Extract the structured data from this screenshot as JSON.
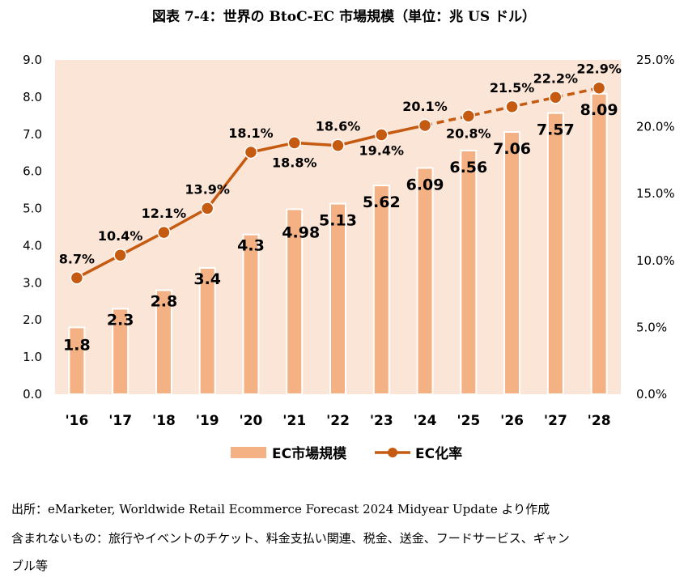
{
  "title": "図表 7-4：世界の BtoC-EC 市場規模（単位：兆 US ドル）",
  "chart_data": {
    "type": "bar+line",
    "categories": [
      "'16",
      "'17",
      "'18",
      "'19",
      "'20",
      "'21",
      "'22",
      "'23",
      "'24",
      "'25",
      "'26",
      "'27",
      "'28"
    ],
    "series": [
      {
        "name": "EC市場規模",
        "type": "bar",
        "axis": "left",
        "values": [
          1.8,
          2.3,
          2.8,
          3.4,
          4.3,
          4.98,
          5.13,
          5.62,
          6.09,
          6.56,
          7.06,
          7.57,
          8.09
        ],
        "labels": [
          "1.8",
          "2.3",
          "2.8",
          "3.4",
          "4.3",
          "4.98",
          "5.13",
          "5.62",
          "6.09",
          "6.56",
          "7.06",
          "7.57",
          "8.09"
        ]
      },
      {
        "name": "EC化率",
        "type": "line",
        "axis": "right",
        "values": [
          8.7,
          10.4,
          12.1,
          13.9,
          18.1,
          18.8,
          18.6,
          19.4,
          20.1,
          20.8,
          21.5,
          22.2,
          22.9
        ],
        "labels": [
          "8.7%",
          "10.4%",
          "12.1%",
          "13.9%",
          "18.1%",
          "18.8%",
          "18.6%",
          "19.4%",
          "20.1%",
          "20.8%",
          "21.5%",
          "22.2%",
          "22.9%"
        ],
        "dashed_from_index": 8
      }
    ],
    "y_left": {
      "min": 0,
      "max": 9,
      "ticks": [
        "0.0",
        "1.0",
        "2.0",
        "3.0",
        "4.0",
        "5.0",
        "6.0",
        "7.0",
        "8.0",
        "9.0"
      ]
    },
    "y_right": {
      "min": 0,
      "max": 25,
      "ticks": [
        "0.0%",
        "5.0%",
        "10.0%",
        "15.0%",
        "20.0%",
        "25.0%"
      ]
    },
    "grid": false,
    "legend_position": "bottom",
    "colors": {
      "bar": "#f4b183",
      "line": "#c55a11",
      "plot_bg": "#fbe5d6",
      "bar_outline": "#ffffff"
    }
  },
  "notes": {
    "source": "出所：eMarketer, Worldwide Retail Ecommerce Forecast 2024 Midyear Update より作成",
    "excluded_line1": "含まれないもの：旅行やイベントのチケット、料金支払い関連、税金、送金、フードサービス、ギャン",
    "excluded_line2": "ブル等"
  }
}
